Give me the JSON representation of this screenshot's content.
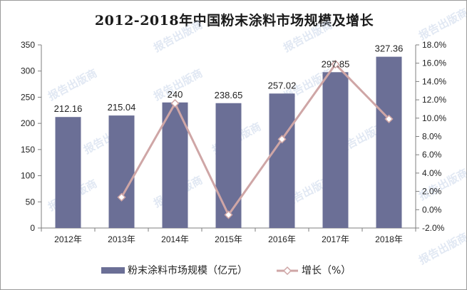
{
  "chart_data": {
    "type": "bar",
    "title": "2012-2018年中国粉末涂料市场规模及增长",
    "categories": [
      "2012年",
      "2013年",
      "2014年",
      "2015年",
      "2016年",
      "2017年",
      "2018年"
    ],
    "series": [
      {
        "name": "粉末涂料市场规模（亿元）",
        "type": "bar",
        "axis": "left",
        "values": [
          212.16,
          215.04,
          240,
          238.65,
          257.02,
          297.85,
          327.36
        ],
        "labels": [
          "212.16",
          "215.04",
          "240",
          "238.65",
          "257.02",
          "297.85",
          "327.36"
        ]
      },
      {
        "name": "增长（%）",
        "type": "line",
        "axis": "right",
        "values": [
          null,
          1.36,
          11.61,
          -0.56,
          7.7,
          15.89,
          9.91
        ]
      }
    ],
    "ylim": [
      0,
      350
    ],
    "yticks": [
      0,
      50,
      100,
      150,
      200,
      250,
      300,
      350
    ],
    "y2lim": [
      -2,
      18
    ],
    "y2ticks": [
      "-2.0%",
      "0.0%",
      "2.0%",
      "4.0%",
      "6.0%",
      "8.0%",
      "10.0%",
      "12.0%",
      "14.0%",
      "16.0%",
      "18.0%"
    ],
    "grid": false,
    "legend_position": "bottom",
    "colors": {
      "bar": "#6b6f96",
      "bar_dark": "#5a5e86",
      "line": "#cfa6a6",
      "marker_fill": "#ffffff",
      "axis": "#7f7f7f"
    }
  },
  "watermark": {
    "text": "报告出版商"
  }
}
